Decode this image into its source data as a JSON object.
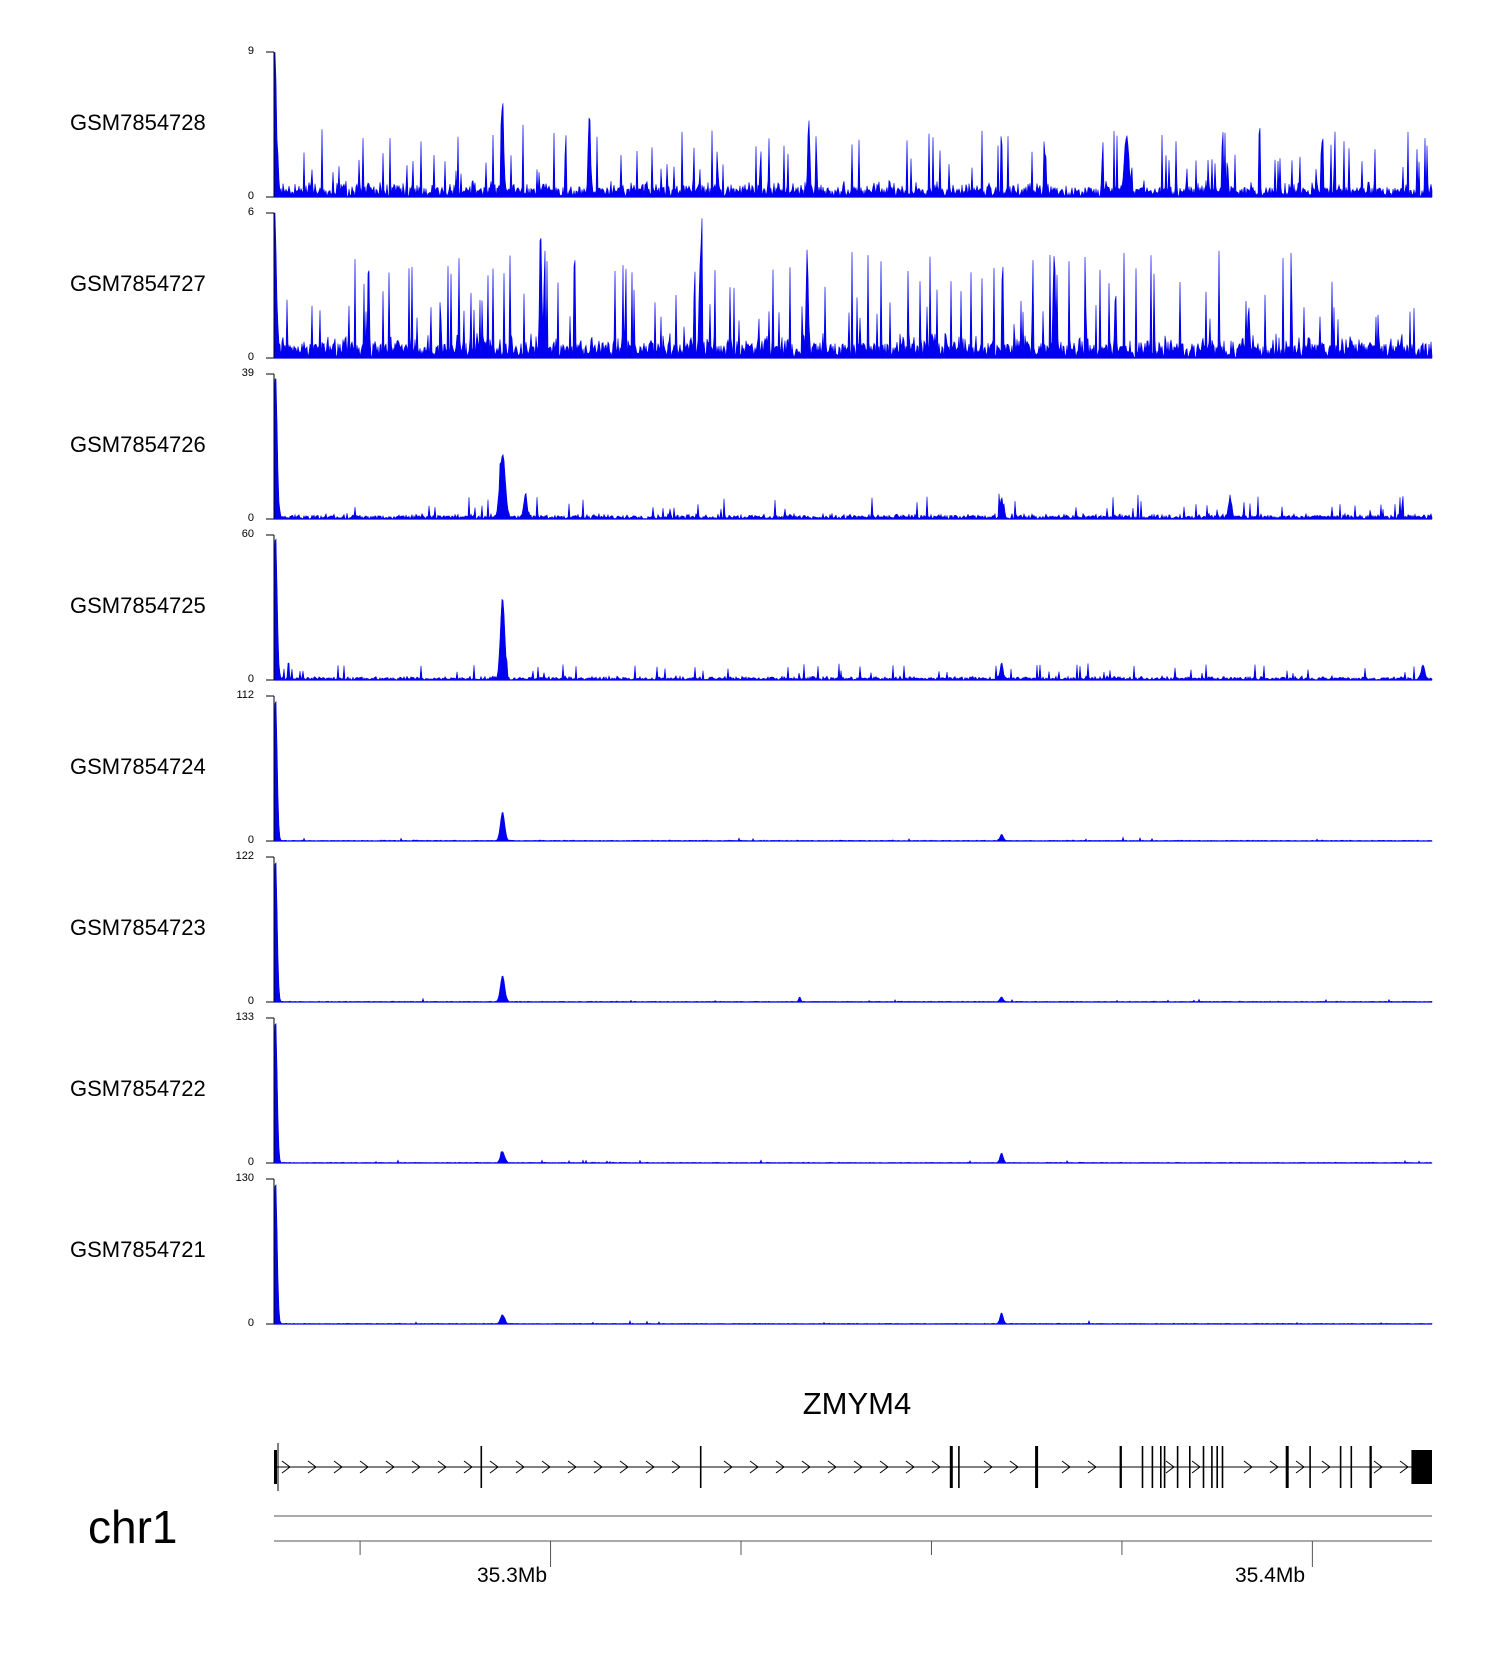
{
  "chart_data": {
    "type": "area",
    "description_region": "chr1",
    "x_unit": "Mb",
    "xlim": [
      35.2637,
      35.4157
    ],
    "ticks_major": [
      35.3,
      35.4
    ],
    "tick_labels": [
      "35.3Mb",
      "35.4Mb"
    ],
    "ticks_minor": [
      35.275,
      35.325,
      35.35,
      35.375,
      35.425
    ],
    "fill_color": "#0000ee",
    "series": [
      {
        "name": "GSM7854728",
        "ylim": [
          0,
          9
        ],
        "ymax_label": "9",
        "ymin_label": "0",
        "baseline": 0.6,
        "noise": 1.2,
        "spike_rate": 0.09,
        "peaks": [
          {
            "x": 35.2638,
            "y": 9.0,
            "w": 0.0003
          },
          {
            "x": 35.2937,
            "y": 6.2,
            "w": 0.0002
          },
          {
            "x": 35.3051,
            "y": 5.2,
            "w": 0.0002
          },
          {
            "x": 35.3339,
            "y": 4.4,
            "w": 0.0002
          },
          {
            "x": 35.3756,
            "y": 3.5,
            "w": 0.0004
          }
        ]
      },
      {
        "name": "GSM7854727",
        "ylim": [
          0,
          6
        ],
        "ymax_label": "6",
        "ymin_label": "0",
        "baseline": 0.6,
        "noise": 1.2,
        "spike_rate": 0.11,
        "peaks": [
          {
            "x": 35.2638,
            "y": 6.0,
            "w": 0.0003
          },
          {
            "x": 35.2987,
            "y": 5.1,
            "w": 0.0002
          },
          {
            "x": 35.3197,
            "y": 4.4,
            "w": 0.0002
          },
          {
            "x": 35.3337,
            "y": 3.9,
            "w": 0.0002
          },
          {
            "x": 35.3661,
            "y": 3.7,
            "w": 0.0002
          }
        ]
      },
      {
        "name": "GSM7854726",
        "ylim": [
          0,
          39
        ],
        "ymax_label": "39",
        "ymin_label": "0",
        "baseline": 0.9,
        "noise": 1.7,
        "spike_rate": 0.05,
        "peaks": [
          {
            "x": 35.2639,
            "y": 39.0,
            "w": 0.0003
          },
          {
            "x": 35.2937,
            "y": 17.0,
            "w": 0.0005
          },
          {
            "x": 35.2967,
            "y": 6.0,
            "w": 0.0003
          },
          {
            "x": 35.3592,
            "y": 5.0,
            "w": 0.0003
          },
          {
            "x": 35.3892,
            "y": 5.5,
            "w": 0.0003
          }
        ]
      },
      {
        "name": "GSM7854725",
        "ylim": [
          0,
          60
        ],
        "ymax_label": "60",
        "ymin_label": "0",
        "baseline": 1.0,
        "noise": 2.0,
        "spike_rate": 0.04,
        "peaks": [
          {
            "x": 35.2639,
            "y": 60.0,
            "w": 0.0003
          },
          {
            "x": 35.2937,
            "y": 33.0,
            "w": 0.0004
          },
          {
            "x": 35.3592,
            "y": 6.0,
            "w": 0.0003
          },
          {
            "x": 35.4145,
            "y": 5.5,
            "w": 0.0003
          }
        ]
      },
      {
        "name": "GSM7854724",
        "ylim": [
          0,
          112
        ],
        "ymax_label": "112",
        "ymin_label": "0",
        "baseline": 0.5,
        "noise": 0.8,
        "spike_rate": 0.01,
        "peaks": [
          {
            "x": 35.2639,
            "y": 112.0,
            "w": 0.0003
          },
          {
            "x": 35.2937,
            "y": 22.0,
            "w": 0.0004
          },
          {
            "x": 35.3592,
            "y": 5.0,
            "w": 0.0003
          }
        ]
      },
      {
        "name": "GSM7854723",
        "ylim": [
          0,
          122
        ],
        "ymax_label": "122",
        "ymin_label": "0",
        "baseline": 0.5,
        "noise": 0.8,
        "spike_rate": 0.01,
        "peaks": [
          {
            "x": 35.2639,
            "y": 122.0,
            "w": 0.0003
          },
          {
            "x": 35.2937,
            "y": 22.0,
            "w": 0.0004
          },
          {
            "x": 35.3592,
            "y": 4.0,
            "w": 0.0003
          },
          {
            "x": 35.3327,
            "y": 4.0,
            "w": 0.0002
          }
        ]
      },
      {
        "name": "GSM7854722",
        "ylim": [
          0,
          133
        ],
        "ymax_label": "133",
        "ymin_label": "0",
        "baseline": 0.5,
        "noise": 0.8,
        "spike_rate": 0.01,
        "peaks": [
          {
            "x": 35.2639,
            "y": 133.0,
            "w": 0.0003
          },
          {
            "x": 35.2937,
            "y": 10.0,
            "w": 0.0004
          },
          {
            "x": 35.3592,
            "y": 9.0,
            "w": 0.0003
          }
        ]
      },
      {
        "name": "GSM7854721",
        "ylim": [
          0,
          130
        ],
        "ymax_label": "130",
        "ymin_label": "0",
        "baseline": 0.5,
        "noise": 0.8,
        "spike_rate": 0.01,
        "peaks": [
          {
            "x": 35.2639,
            "y": 130.0,
            "w": 0.0003
          },
          {
            "x": 35.2937,
            "y": 8.0,
            "w": 0.0004
          },
          {
            "x": 35.3592,
            "y": 10.0,
            "w": 0.0003
          }
        ]
      }
    ],
    "gene": {
      "name": "ZMYM4",
      "strand": "+",
      "start": 35.2637,
      "end": 35.4157,
      "exons": [
        [
          35.2637,
          35.2641
        ],
        [
          35.2908,
          35.2909
        ],
        [
          35.3196,
          35.3197
        ],
        [
          35.3524,
          35.3528
        ],
        [
          35.3535,
          35.3537
        ],
        [
          35.3636,
          35.364
        ],
        [
          35.3747,
          35.375
        ],
        [
          35.3776,
          35.3777
        ],
        [
          35.3789,
          35.3791
        ],
        [
          35.38,
          35.3801
        ],
        [
          35.3805,
          35.3806
        ],
        [
          35.3822,
          35.3823
        ],
        [
          35.3838,
          35.3839
        ],
        [
          35.3856,
          35.3857
        ],
        [
          35.3867,
          35.3868
        ],
        [
          35.3874,
          35.3875
        ],
        [
          35.3881,
          35.3882
        ],
        [
          35.3965,
          35.3969
        ],
        [
          35.3996,
          35.3997
        ],
        [
          35.4036,
          35.4037
        ],
        [
          35.405,
          35.4051
        ],
        [
          35.4075,
          35.4078
        ],
        [
          35.413,
          35.4157
        ]
      ]
    }
  }
}
